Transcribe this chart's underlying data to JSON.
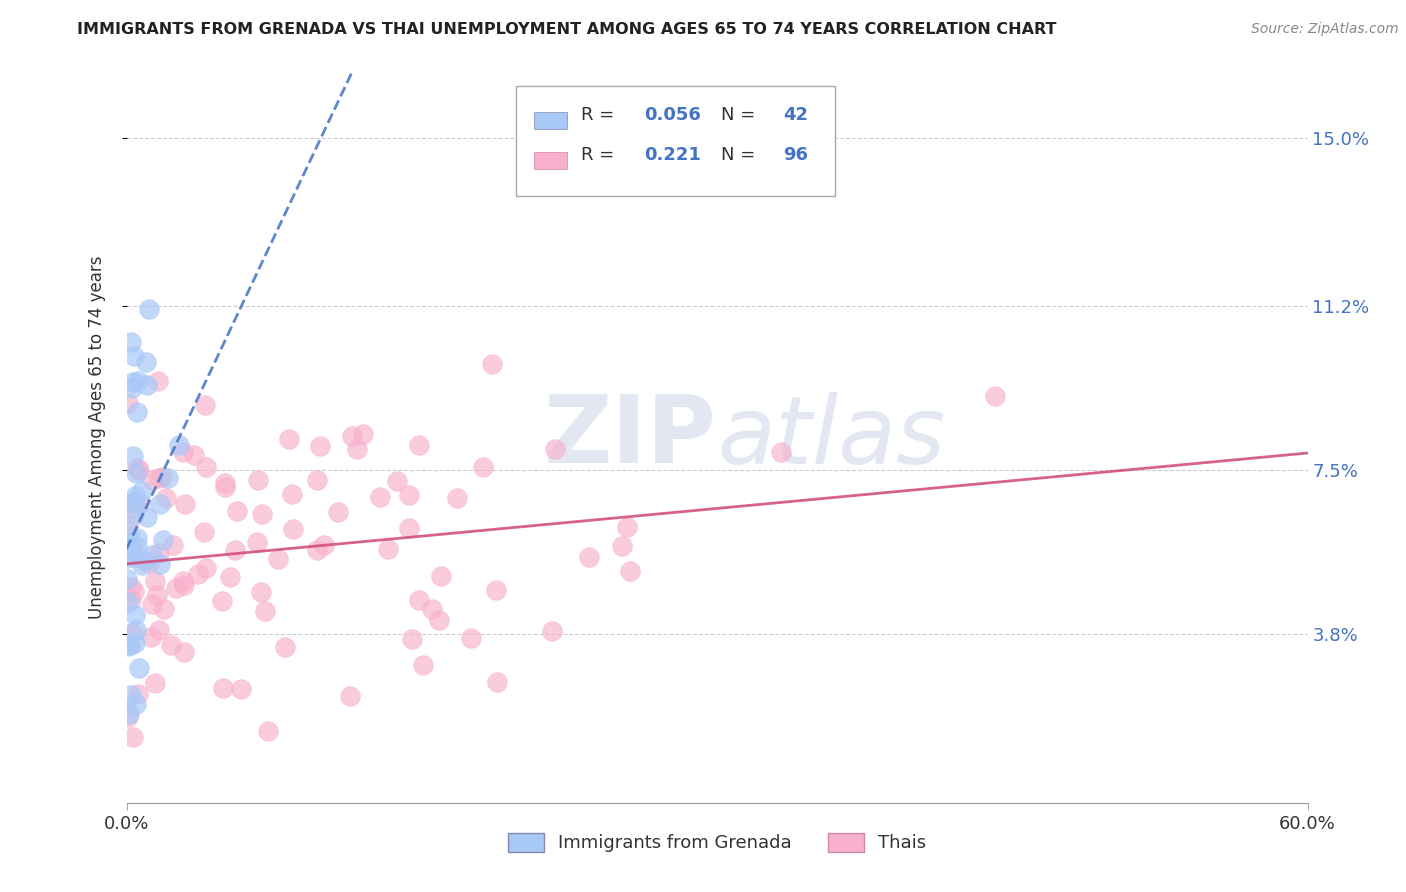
{
  "title": "IMMIGRANTS FROM GRENADA VS THAI UNEMPLOYMENT AMONG AGES 65 TO 74 YEARS CORRELATION CHART",
  "source": "Source: ZipAtlas.com",
  "ylabel_label": "Unemployment Among Ages 65 to 74 years",
  "legend_labels": [
    "Immigrants from Grenada",
    "Thais"
  ],
  "grenada_R": 0.056,
  "grenada_N": 42,
  "thai_R": 0.221,
  "thai_N": 96,
  "grenada_color": "#a8c8f8",
  "thai_color": "#f8b0cc",
  "grenada_line_color": "#4472c4",
  "thai_line_color": "#d04878",
  "bg_color": "#ffffff",
  "xlim": [
    0.0,
    0.6
  ],
  "ylim": [
    0.0,
    0.165
  ],
  "ytick_vals": [
    0.038,
    0.075,
    0.112,
    0.15
  ],
  "ytick_labels": [
    "3.8%",
    "7.5%",
    "11.2%",
    "15.0%"
  ],
  "xtick_vals": [
    0.0,
    0.6
  ],
  "xtick_labels": [
    "0.0%",
    "60.0%"
  ]
}
